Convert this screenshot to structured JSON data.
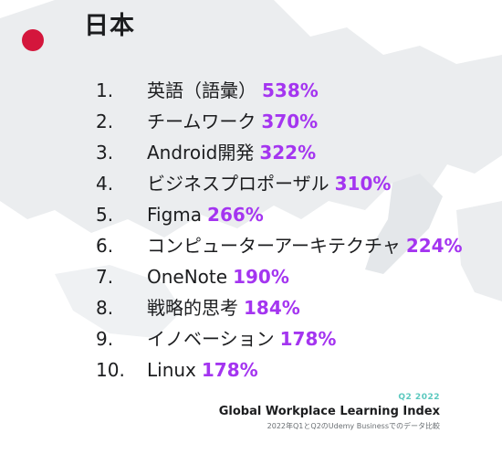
{
  "header": {
    "title": "日本"
  },
  "colors": {
    "flag": "#d4163c",
    "accent": "#a435f0",
    "date": "#5ac8be",
    "map": "#ebedef"
  },
  "ranking": [
    {
      "rank": "1.",
      "skill": "英語（語彙）",
      "growth": "538%"
    },
    {
      "rank": "2.",
      "skill": "チームワーク",
      "growth": "370%"
    },
    {
      "rank": "3.",
      "skill": "Android開発",
      "growth": "322%"
    },
    {
      "rank": "4.",
      "skill": "ビジネスプロポーザル",
      "growth": "310%"
    },
    {
      "rank": "5.",
      "skill": "Figma",
      "growth": "266%"
    },
    {
      "rank": "6.",
      "skill": "コンピューターアーキテクチャ",
      "growth": "224%"
    },
    {
      "rank": "7.",
      "skill": "OneNote",
      "growth": "190%"
    },
    {
      "rank": "8.",
      "skill": "戦略的思考",
      "growth": "184%"
    },
    {
      "rank": "9.",
      "skill": "イノベーション",
      "growth": "178%"
    },
    {
      "rank": "10.",
      "skill": "Linux",
      "growth": "178%"
    }
  ],
  "footer": {
    "date": "Q2 2022",
    "title": "Global Workplace Learning Index",
    "note": "2022年Q1とQ2のUdemy Businessでのデータ比較"
  }
}
